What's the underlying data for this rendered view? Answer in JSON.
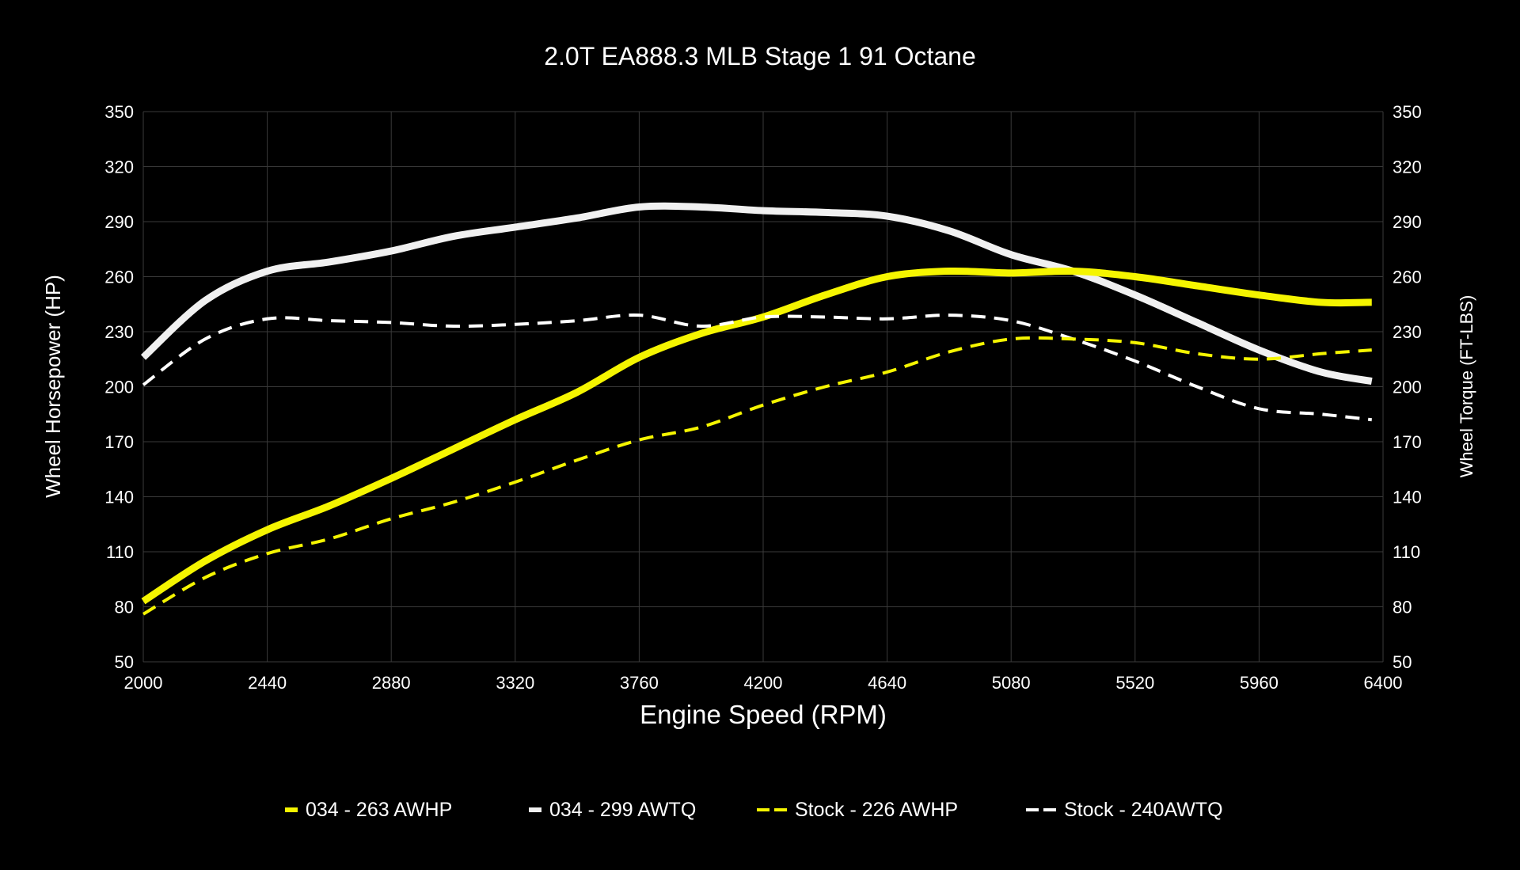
{
  "chart_data": {
    "type": "line",
    "title": "2.0T EA888.3 MLB Stage 1 91 Octane",
    "xlabel": "Engine Speed (RPM)",
    "ylabel": "Wheel Horsepower (HP)",
    "y2label": "Wheel Torque (FT-LBS)",
    "xlim": [
      2000,
      6400
    ],
    "ylim": [
      50,
      350
    ],
    "y2lim": [
      50,
      350
    ],
    "xticks": [
      2000,
      2440,
      2880,
      3320,
      3760,
      4200,
      4640,
      5080,
      5520,
      5960,
      6400
    ],
    "yticks": [
      50,
      80,
      110,
      140,
      170,
      200,
      230,
      260,
      290,
      320,
      350
    ],
    "grid": true,
    "legend_placement": "bottom",
    "x": [
      2000,
      2220,
      2440,
      2660,
      2880,
      3100,
      3320,
      3540,
      3760,
      3980,
      4200,
      4420,
      4640,
      4860,
      5080,
      5300,
      5520,
      5740,
      5960,
      6180,
      6360
    ],
    "series": [
      {
        "name": "034 - 263 AWHP",
        "color": "#f5f500",
        "dash": false,
        "values": [
          83,
          105,
          122,
          135,
          150,
          166,
          182,
          197,
          216,
          229,
          238,
          250,
          260,
          263,
          262,
          263,
          260,
          255,
          250,
          246,
          246
        ]
      },
      {
        "name": "034 - 299 AWTQ",
        "color": "#f0f0f0",
        "dash": false,
        "values": [
          216,
          247,
          263,
          268,
          274,
          282,
          287,
          292,
          298,
          298,
          296,
          295,
          293,
          285,
          272,
          263,
          250,
          235,
          220,
          208,
          203
        ]
      },
      {
        "name": "Stock - 226 AWHP",
        "color": "#f5f500",
        "dash": true,
        "values": [
          76,
          96,
          109,
          117,
          128,
          137,
          148,
          160,
          171,
          178,
          190,
          200,
          208,
          219,
          226,
          226,
          224,
          218,
          215,
          218,
          220
        ]
      },
      {
        "name": "Stock - 240AWTQ",
        "color": "#ffffff",
        "dash": true,
        "values": [
          201,
          226,
          237,
          236,
          235,
          233,
          234,
          236,
          239,
          233,
          238,
          238,
          237,
          239,
          236,
          226,
          214,
          200,
          188,
          185,
          182
        ]
      }
    ],
    "colors": {
      "background": "#000000",
      "grid": "#3a3a3a",
      "text": "#ffffff"
    }
  }
}
